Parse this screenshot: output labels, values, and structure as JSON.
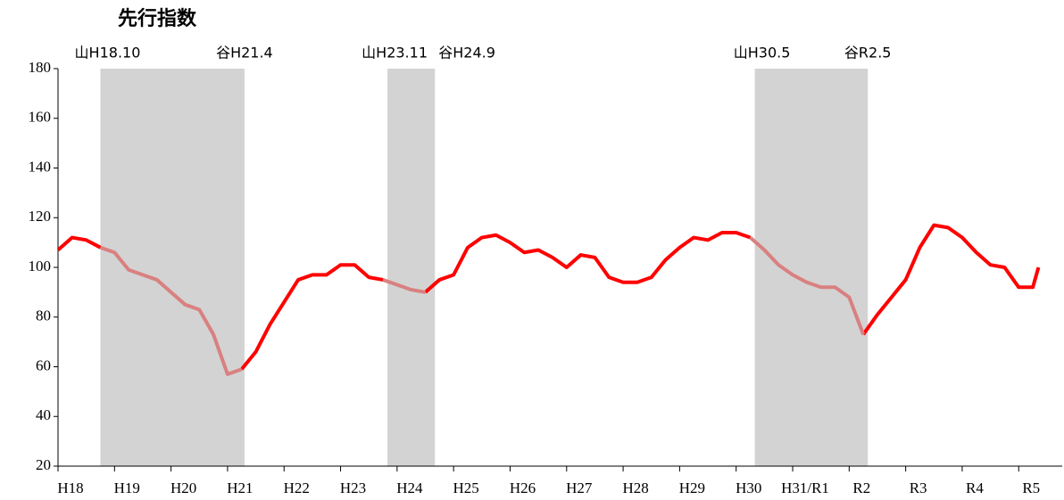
{
  "chart_data": {
    "type": "line",
    "title": "先行指数",
    "x": [
      2006,
      2006.25,
      2006.5,
      2006.75,
      2007,
      2007.25,
      2007.5,
      2007.75,
      2008,
      2008.25,
      2008.5,
      2008.75,
      2009,
      2009.25,
      2009.5,
      2009.75,
      2010,
      2010.25,
      2010.5,
      2010.75,
      2011,
      2011.25,
      2011.5,
      2011.75,
      2012,
      2012.25,
      2012.5,
      2012.75,
      2013,
      2013.25,
      2013.5,
      2013.75,
      2014,
      2014.25,
      2014.5,
      2014.75,
      2015,
      2015.25,
      2015.5,
      2015.75,
      2016,
      2016.25,
      2016.5,
      2016.75,
      2017,
      2017.25,
      2017.5,
      2017.75,
      2018,
      2018.25,
      2018.5,
      2018.75,
      2019,
      2019.25,
      2019.5,
      2019.75,
      2020,
      2020.25,
      2020.5,
      2020.75,
      2021,
      2021.25,
      2021.5,
      2021.75,
      2022,
      2022.25,
      2022.5,
      2022.75,
      2023,
      2023.25,
      2023.35
    ],
    "series": [
      {
        "color": "#ff0000",
        "values": [
          107,
          112,
          111,
          108,
          null,
          null,
          null,
          null,
          null,
          null,
          null,
          null,
          null,
          59,
          66,
          77,
          86,
          95,
          97,
          97,
          101,
          101,
          96,
          95,
          null,
          null,
          90,
          95,
          97,
          108,
          112,
          113,
          110,
          106,
          107,
          104,
          100,
          105,
          104,
          96,
          94,
          94,
          96,
          103,
          108,
          112,
          111,
          114,
          114,
          112,
          null,
          null,
          null,
          null,
          null,
          null,
          null,
          73,
          81,
          88,
          95,
          108,
          117,
          116,
          112,
          106,
          101,
          100,
          92,
          92,
          100
        ]
      },
      {
        "color": "#d98080",
        "values": [
          null,
          null,
          null,
          108,
          106,
          99,
          97,
          95,
          90,
          85,
          83,
          73,
          57,
          59,
          null,
          null,
          null,
          null,
          null,
          null,
          null,
          null,
          null,
          95,
          93,
          91,
          90,
          null,
          null,
          null,
          null,
          null,
          null,
          null,
          null,
          null,
          null,
          null,
          null,
          null,
          null,
          null,
          null,
          null,
          null,
          null,
          null,
          null,
          null,
          112,
          107,
          101,
          97,
          94,
          92,
          92,
          88,
          73,
          null,
          null,
          null,
          null,
          null,
          null,
          null,
          null,
          null,
          null,
          null,
          null,
          null
        ]
      }
    ],
    "recessions": [
      {
        "start": 2006.75,
        "end": 2009.3,
        "peak_label": "山H18.10",
        "trough_label": "谷H21.4"
      },
      {
        "start": 2011.83,
        "end": 2012.67,
        "peak_label": "山H23.11",
        "trough_label": "谷H24.9"
      },
      {
        "start": 2018.33,
        "end": 2020.33,
        "peak_label": "山H30.5",
        "trough_label": "谷R2.5"
      }
    ],
    "recession_color": "#d3d3d3",
    "xlim": [
      2006,
      2023.77
    ],
    "xticks": [
      {
        "value": 2006,
        "label": "H18"
      },
      {
        "value": 2007,
        "label": "H19"
      },
      {
        "value": 2008,
        "label": "H20"
      },
      {
        "value": 2009,
        "label": "H21"
      },
      {
        "value": 2010,
        "label": "H22"
      },
      {
        "value": 2011,
        "label": "H23"
      },
      {
        "value": 2012,
        "label": "H24"
      },
      {
        "value": 2013,
        "label": "H25"
      },
      {
        "value": 2014,
        "label": "H26"
      },
      {
        "value": 2015,
        "label": "H27"
      },
      {
        "value": 2016,
        "label": "H28"
      },
      {
        "value": 2017,
        "label": "H29"
      },
      {
        "value": 2018,
        "label": "H30"
      },
      {
        "value": 2019,
        "label": "H31/R1"
      },
      {
        "value": 2020,
        "label": "R2"
      },
      {
        "value": 2021,
        "label": "R3"
      },
      {
        "value": 2022,
        "label": "R4"
      },
      {
        "value": 2023,
        "label": "R5"
      }
    ],
    "ylim": [
      20,
      180
    ],
    "yticks": [
      20,
      40,
      60,
      80,
      100,
      120,
      140,
      160,
      180
    ]
  }
}
